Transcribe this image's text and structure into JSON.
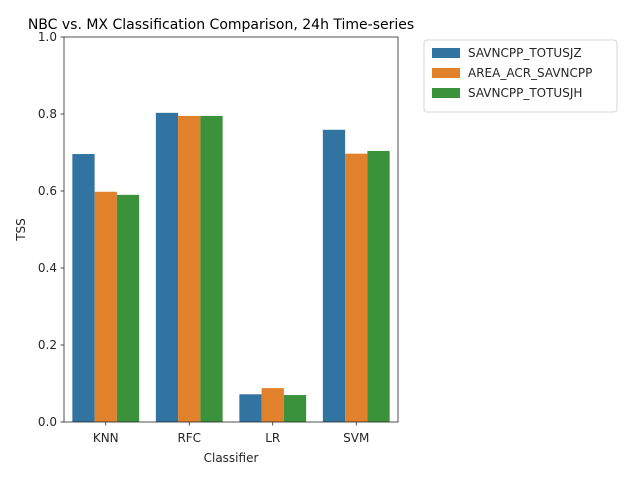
{
  "chart_data": {
    "type": "bar",
    "title": "NBC vs. MX Classification Comparison, 24h Time-series",
    "xlabel": "Classifier",
    "ylabel": "TSS",
    "ylim": [
      0,
      1.0
    ],
    "yticks": [
      0.0,
      0.2,
      0.4,
      0.6,
      0.8,
      1.0
    ],
    "ytick_labels": [
      "0.0",
      "0.2",
      "0.4",
      "0.6",
      "0.8",
      "1.0"
    ],
    "categories": [
      "KNN",
      "RFC",
      "LR",
      "SVM"
    ],
    "series": [
      {
        "name": "SAVNCPP_TOTUSJZ",
        "color": "#3274a1",
        "values": [
          0.696,
          0.803,
          0.072,
          0.759
        ]
      },
      {
        "name": "AREA_ACR_SAVNCPP",
        "color": "#e1812c",
        "values": [
          0.598,
          0.795,
          0.088,
          0.697
        ]
      },
      {
        "name": "SAVNCPP_TOTUSJH",
        "color": "#3a923a",
        "values": [
          0.59,
          0.795,
          0.07,
          0.704
        ]
      }
    ],
    "legend_position": "outside-upper-right",
    "grid": false
  }
}
